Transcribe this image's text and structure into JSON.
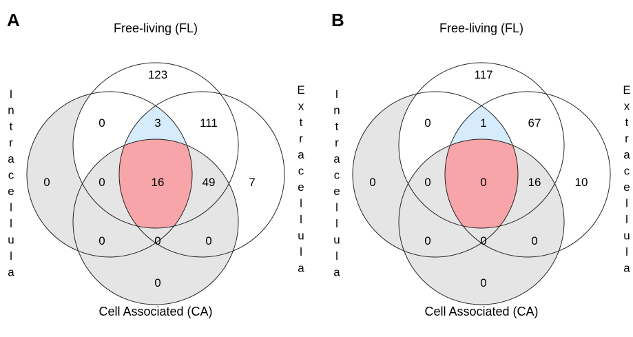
{
  "colors": {
    "gray_fill": "#e5e5e5",
    "blue_fill": "#d6ebfb",
    "red_fill": "#f7a5a8",
    "stroke": "#222222"
  },
  "panels": [
    {
      "letter": "A",
      "labels": {
        "top": "Free-living (FL)",
        "bottom": "Cell Associated (CA)",
        "left": "Intracellula",
        "right": "Extracellula"
      },
      "regions": {
        "fl_only": "123",
        "fl_ex": "111",
        "ex_only": "7",
        "fl_in": "0",
        "fl_in_ex": "3",
        "in_only": "0",
        "in_fl_ca": "0",
        "all": "16",
        "fl_ex_ca": "49",
        "in_ca": "0",
        "in_ex_ca": "0",
        "ex_ca": "0",
        "ca_only": "0"
      }
    },
    {
      "letter": "B",
      "labels": {
        "top": "Free-living (FL)",
        "bottom": "Cell Associated (CA)",
        "left": "Intracellula",
        "right": "Extracellula"
      },
      "regions": {
        "fl_only": "117",
        "fl_ex": "67",
        "ex_only": "10",
        "fl_in": "0",
        "fl_in_ex": "1",
        "in_only": "0",
        "in_fl_ca": "0",
        "all": "0",
        "fl_ex_ca": "16",
        "in_ca": "0",
        "in_ex_ca": "0",
        "ex_ca": "0",
        "ca_only": "0"
      }
    }
  ]
}
